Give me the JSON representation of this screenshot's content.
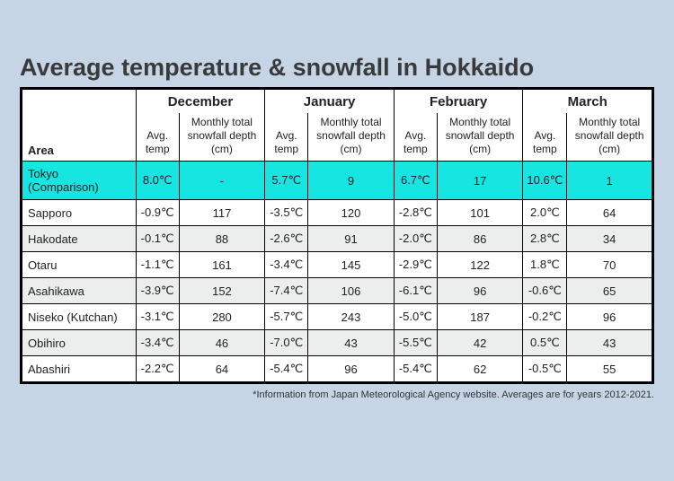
{
  "title": "Average temperature & snowfall in Hokkaido",
  "labels": {
    "area": "Area",
    "avg_temp": "Avg. temp",
    "snowfall": "Monthly total snowfall depth (cm)"
  },
  "months": [
    "December",
    "January",
    "February",
    "March"
  ],
  "rows": [
    {
      "area": "Tokyo (Comparison)",
      "highlight": true,
      "stripe": false,
      "values": [
        "8.0℃",
        "-",
        "5.7℃",
        "9",
        "6.7℃",
        "17",
        "10.6℃",
        "1"
      ]
    },
    {
      "area": "Sapporo",
      "highlight": false,
      "stripe": false,
      "values": [
        "-0.9℃",
        "117",
        "-3.5℃",
        "120",
        "-2.8℃",
        "101",
        "2.0℃",
        "64"
      ]
    },
    {
      "area": "Hakodate",
      "highlight": false,
      "stripe": true,
      "values": [
        "-0.1℃",
        "88",
        "-2.6℃",
        "91",
        "-2.0℃",
        "86",
        "2.8℃",
        "34"
      ]
    },
    {
      "area": "Otaru",
      "highlight": false,
      "stripe": false,
      "values": [
        "-1.1℃",
        "161",
        "-3.4℃",
        "145",
        "-2.9℃",
        "122",
        "1.8℃",
        "70"
      ]
    },
    {
      "area": "Asahikawa",
      "highlight": false,
      "stripe": true,
      "values": [
        "-3.9℃",
        "152",
        "-7.4℃",
        "106",
        "-6.1℃",
        "96",
        "-0.6℃",
        "65"
      ]
    },
    {
      "area": "Niseko (Kutchan)",
      "highlight": false,
      "stripe": false,
      "values": [
        "-3.1℃",
        "280",
        "-5.7℃",
        "243",
        "-5.0℃",
        "187",
        "-0.2℃",
        "96"
      ]
    },
    {
      "area": "Obihiro",
      "highlight": false,
      "stripe": true,
      "values": [
        "-3.4℃",
        "46",
        "-7.0℃",
        "43",
        "-5.5℃",
        "42",
        "0.5℃",
        "43"
      ]
    },
    {
      "area": "Abashiri",
      "highlight": false,
      "stripe": false,
      "values": [
        "-2.2℃",
        "64",
        "-5.4℃",
        "96",
        "-5.4℃",
        "62",
        "-0.5℃",
        "55"
      ]
    }
  ],
  "footnote": "*Information from Japan Meteorological Agency website. Averages are for years 2012-2021.",
  "style": {
    "background_color": "#c5d5e6",
    "table_bg": "#ffffff",
    "stripe_bg": "#eceded",
    "highlight_bg": "#16e5e2",
    "border_color": "#000000",
    "title_color": "#3a3a3a",
    "title_fontsize": 27,
    "body_fontsize": 13,
    "footnote_fontsize": 11
  }
}
